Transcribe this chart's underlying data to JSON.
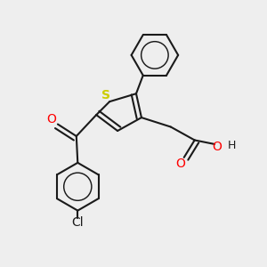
{
  "bg_color": "#eeeeee",
  "bond_color": "#1a1a1a",
  "bond_width": 1.5,
  "S_color": "#cccc00",
  "O_color": "#ff0000",
  "Cl_color": "#1a1a1a",
  "font_size_S": 10,
  "font_size_O": 10,
  "font_size_H": 9,
  "font_size_Cl": 10,
  "fig_size": [
    3.0,
    3.0
  ],
  "dpi": 100,
  "xlim": [
    0,
    10
  ],
  "ylim": [
    0,
    10
  ]
}
